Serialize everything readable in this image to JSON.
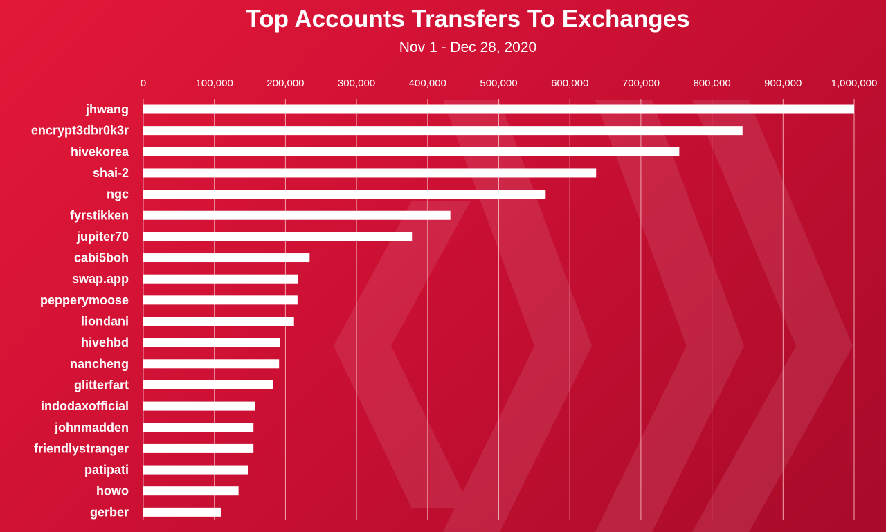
{
  "chart_data": {
    "type": "bar",
    "orientation": "horizontal",
    "title": "Top Accounts Transfers To Exchanges",
    "subtitle": "Nov 1 - Dec 28, 2020",
    "xlim": [
      0,
      1000000
    ],
    "tick_labels": [
      "0",
      "100,000",
      "200,000",
      "300,000",
      "400,000",
      "500,000",
      "600,000",
      "700,000",
      "800,000",
      "900,000",
      "1,000,000"
    ],
    "grid": true,
    "categories": [
      "jhwang",
      "encrypt3dbr0k3r",
      "hivekorea",
      "shai-2",
      "ngc",
      "fyrstikken",
      "jupiter70",
      "cabi5boh",
      "swap.app",
      "pepperymoose",
      "liondani",
      "hivehbd",
      "nancheng",
      "glitterfart",
      "indodaxofficial",
      "johnmadden",
      "friendlystranger",
      "patipati",
      "howo",
      "gerber"
    ],
    "values": [
      1000000,
      843000,
      754000,
      637000,
      566000,
      432000,
      378000,
      234000,
      218000,
      217000,
      212000,
      192000,
      191000,
      183000,
      157000,
      155000,
      155000,
      148000,
      134000,
      109000
    ],
    "colors": {
      "bar": "#ffffff",
      "grid": "#f1a5b1",
      "text": "#ffffff"
    }
  }
}
